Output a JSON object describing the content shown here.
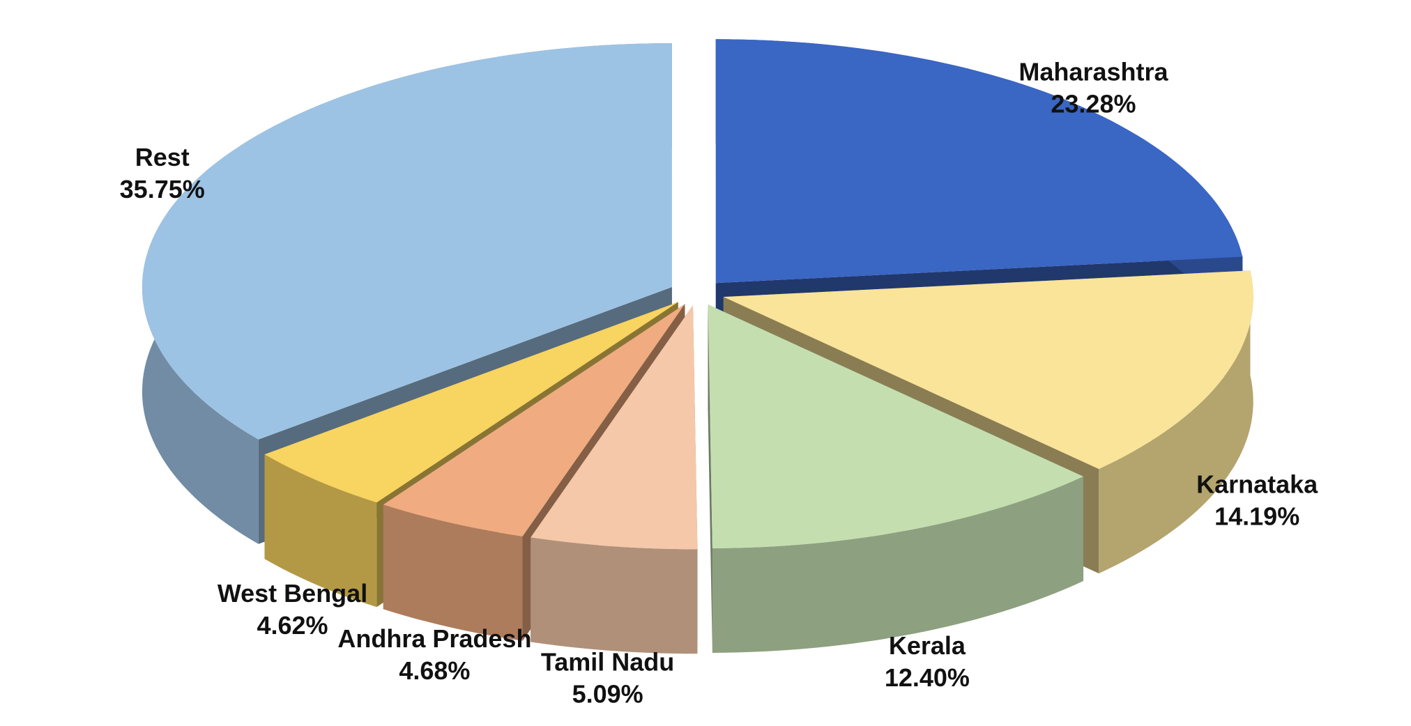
{
  "chart_data": {
    "type": "pie3d",
    "categories": [
      "Maharashtra",
      "Karnataka",
      "Kerala",
      "Tamil Nadu",
      "Andhra Pradesh",
      "West Bengal",
      "Rest"
    ],
    "values": [
      23.28,
      14.19,
      12.4,
      5.09,
      4.68,
      4.62,
      35.75
    ],
    "value_labels": [
      "23.28%",
      "14.19%",
      "12.40%",
      "5.09%",
      "4.68%",
      "4.62%",
      "35.75%"
    ],
    "colors": [
      "#3a66c4",
      "#fae499",
      "#c4deb0",
      "#f4c8a8",
      "#f0ac80",
      "#f8d460",
      "#9dc3e4"
    ]
  }
}
